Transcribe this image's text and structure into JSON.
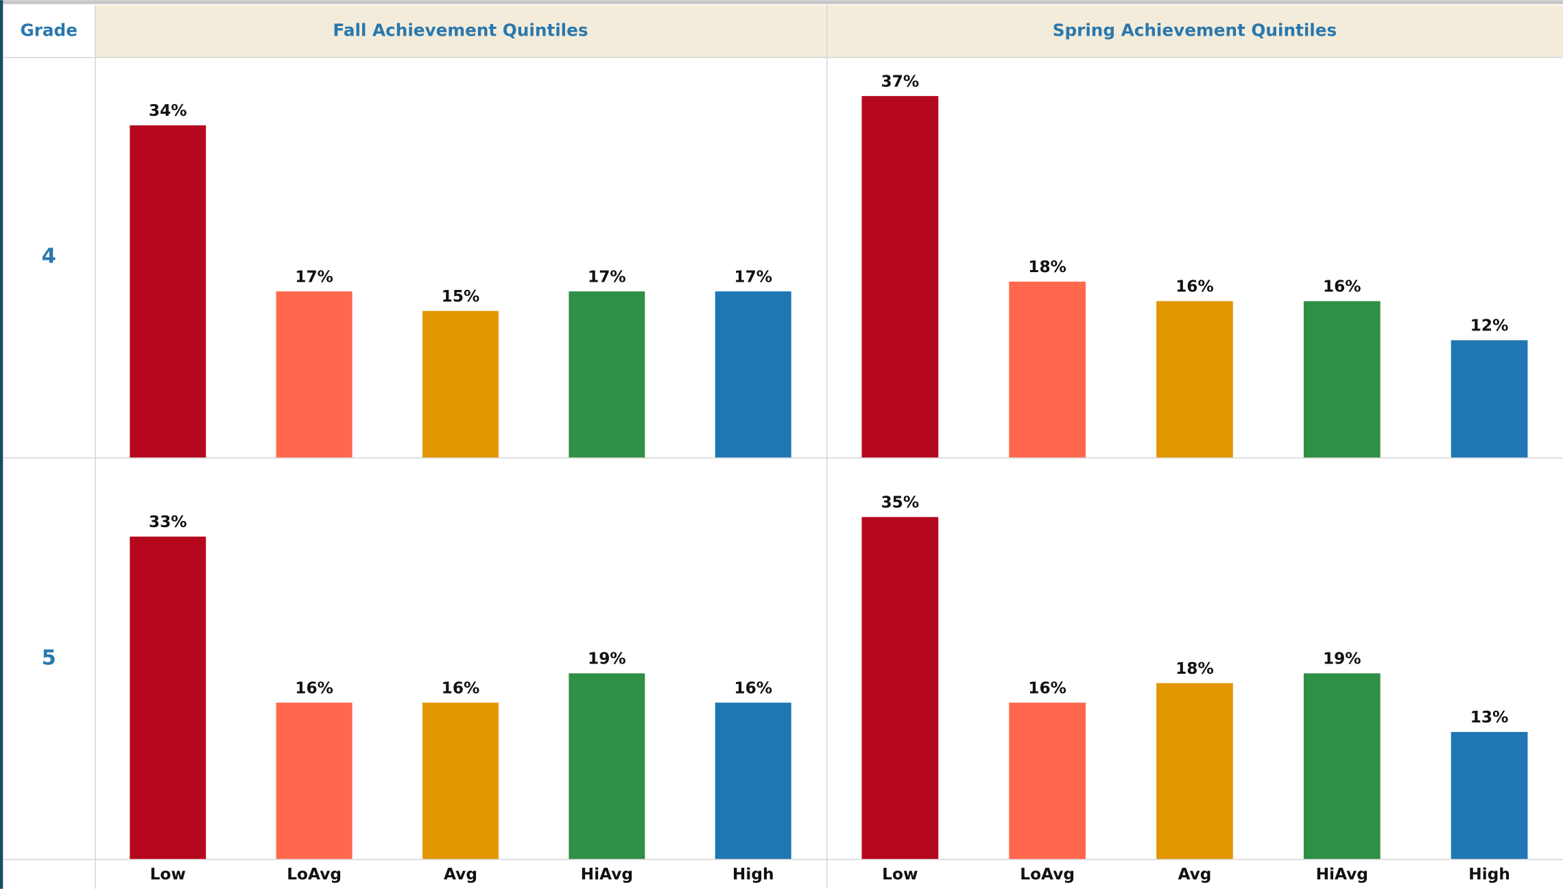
{
  "chart_data": {
    "type": "bar",
    "row_header": "Grade",
    "columns": [
      "Fall Achievement Quintiles",
      "Spring Achievement Quintiles"
    ],
    "rows": [
      "4",
      "5"
    ],
    "categories": [
      "Low",
      "LoAvg",
      "Avg",
      "HiAvg",
      "High"
    ],
    "colors": [
      "#b5081e",
      "#ff684c",
      "#e29600",
      "#2f8f45",
      "#1f77b4"
    ],
    "ylim": [
      0,
      41
    ],
    "panels": [
      [
        {
          "values": [
            34,
            17,
            15,
            17,
            17
          ],
          "value_labels": [
            "34%",
            "17%",
            "15%",
            "17%",
            "17%"
          ]
        },
        {
          "values": [
            37,
            18,
            16,
            16,
            12
          ],
          "value_labels": [
            "37%",
            "18%",
            "16%",
            "16%",
            "12%"
          ]
        }
      ],
      [
        {
          "values": [
            33,
            16,
            16,
            19,
            16
          ],
          "value_labels": [
            "33%",
            "16%",
            "16%",
            "19%",
            "16%"
          ]
        },
        {
          "values": [
            35,
            16,
            18,
            19,
            13
          ],
          "value_labels": [
            "35%",
            "16%",
            "18%",
            "19%",
            "13%"
          ]
        }
      ]
    ]
  }
}
